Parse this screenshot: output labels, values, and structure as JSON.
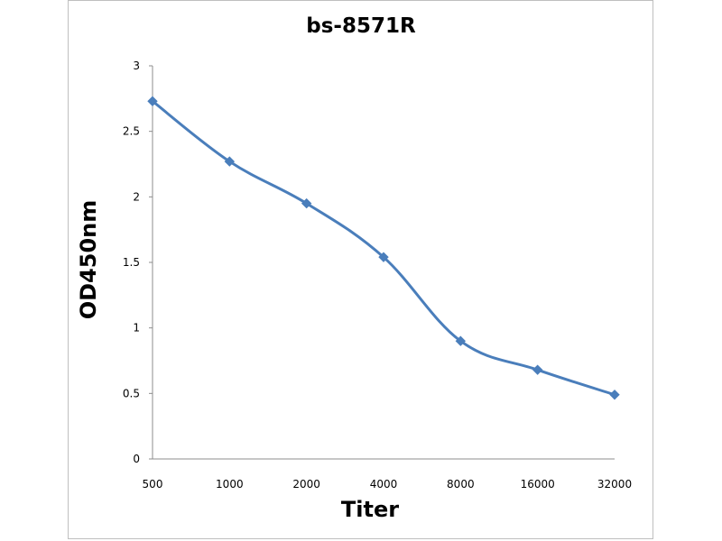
{
  "chart_data": {
    "type": "line",
    "title": "bs-8571R",
    "xlabel": "Titer",
    "ylabel": "OD450nm",
    "categories": [
      "500",
      "1000",
      "2000",
      "4000",
      "8000",
      "16000",
      "32000"
    ],
    "series": [
      {
        "values": [
          2.73,
          2.27,
          1.95,
          1.54,
          0.9,
          0.68,
          0.49
        ],
        "color": "#4a7ebb",
        "marker": "diamond"
      }
    ],
    "ylim": [
      0,
      3
    ],
    "yticks": [
      "0",
      "0.5",
      "1",
      "1.5",
      "2",
      "2.5",
      "3"
    ],
    "grid": false,
    "legend": false,
    "line_style": "smooth"
  }
}
